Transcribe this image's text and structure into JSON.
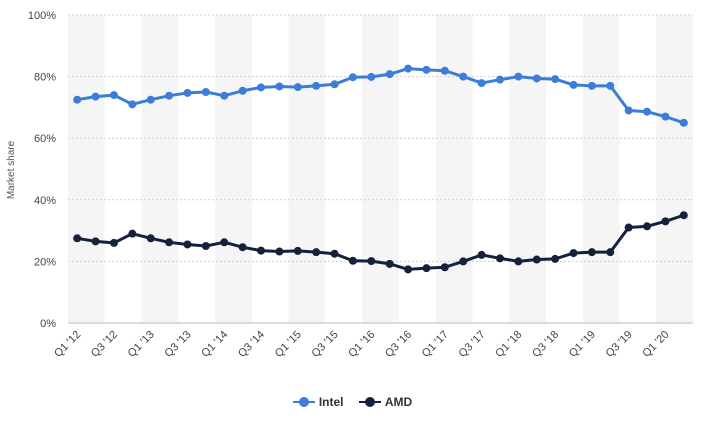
{
  "chart_data": {
    "type": "line",
    "ylabel": "Market share",
    "xlabel": "",
    "ylim": [
      0,
      100
    ],
    "y_ticks": [
      0,
      20,
      40,
      60,
      80,
      100
    ],
    "y_tick_labels": [
      "0%",
      "20%",
      "40%",
      "60%",
      "80%",
      "100%"
    ],
    "x": [
      "Q1 '12",
      "Q2 '12",
      "Q3 '12",
      "Q4 '12",
      "Q1 '13",
      "Q2 '13",
      "Q3 '13",
      "Q4 '13",
      "Q1 '14",
      "Q2 '14",
      "Q3 '14",
      "Q4 '14",
      "Q1 '15",
      "Q2 '15",
      "Q3 '15",
      "Q4 '15",
      "Q1 '16",
      "Q2 '16",
      "Q3 '16",
      "Q4 '16",
      "Q1 '17",
      "Q2 '17",
      "Q3 '17",
      "Q4 '17",
      "Q1 '18",
      "Q2 '18",
      "Q3 '18",
      "Q4 '18",
      "Q1 '19",
      "Q2 '19",
      "Q3 '19",
      "Q4 '19",
      "Q1 '20",
      "Q2 '20"
    ],
    "x_tick_labels": [
      "Q1 '12",
      "Q3 '12",
      "Q1 '13",
      "Q3 '13",
      "Q1 '14",
      "Q3 '14",
      "Q1 '15",
      "Q3 '15",
      "Q1 '16",
      "Q3 '16",
      "Q1 '17",
      "Q3 '17",
      "Q1 '18",
      "Q3 '18",
      "Q1 '19",
      "Q3 '19",
      "Q1 '20"
    ],
    "grid": true,
    "legend_position": "bottom-center",
    "series": [
      {
        "name": "Intel",
        "color": "#3b7dd8",
        "values": [
          72.5,
          73.5,
          74,
          71,
          72.5,
          73.8,
          74.7,
          75,
          73.8,
          75.4,
          76.5,
          76.8,
          76.6,
          77,
          77.5,
          79.8,
          79.9,
          80.8,
          82.6,
          82.2,
          81.9,
          80,
          77.9,
          79,
          80,
          79.4,
          79.2,
          77.3,
          77,
          77,
          69,
          68.6,
          67,
          65
        ]
      },
      {
        "name": "AMD",
        "color": "#14213a",
        "values": [
          27.5,
          26.5,
          26,
          29,
          27.5,
          26.2,
          25.5,
          25,
          26.2,
          24.6,
          23.5,
          23.2,
          23.4,
          23,
          22.5,
          20.2,
          20.1,
          19.2,
          17.4,
          17.8,
          18.1,
          20,
          22.1,
          21,
          20,
          20.6,
          20.8,
          22.7,
          23,
          23,
          31,
          31.4,
          33,
          35
        ]
      }
    ]
  }
}
